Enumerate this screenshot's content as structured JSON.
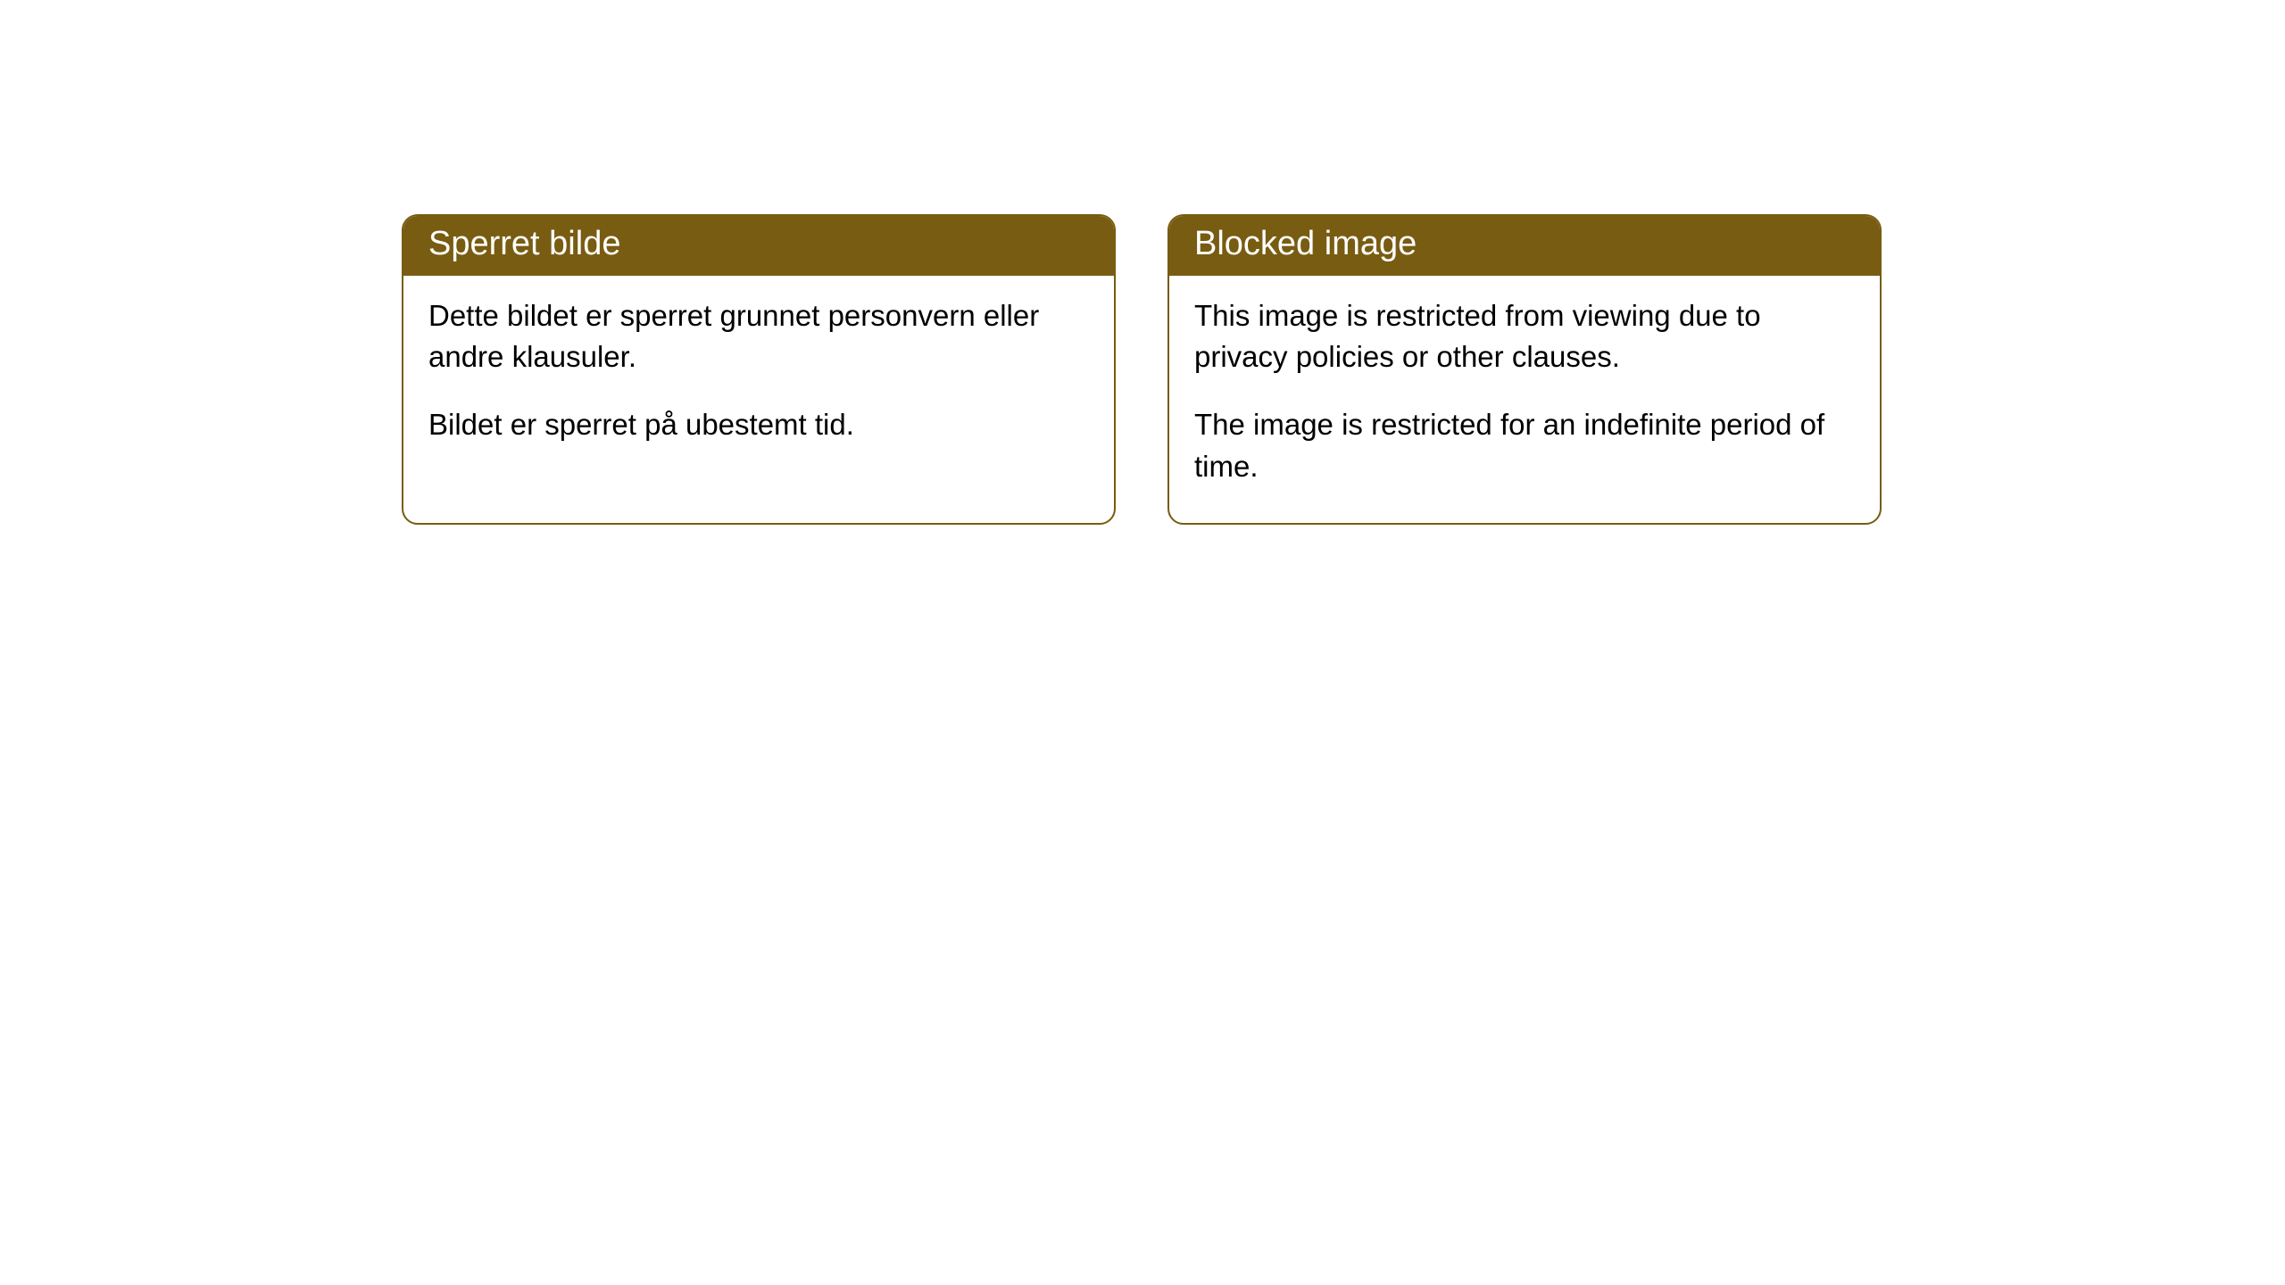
{
  "cards": [
    {
      "header": "Sperret bilde",
      "paragraph1": "Dette bildet er sperret grunnet personvern eller andre klausuler.",
      "paragraph2": "Bildet er sperret på ubestemt tid."
    },
    {
      "header": "Blocked image",
      "paragraph1": "This image is restricted from viewing due to privacy policies or other clauses.",
      "paragraph2": "The image is restricted for an indefinite period of time."
    }
  ],
  "styling": {
    "card_border_color": "#785c11",
    "header_background_color": "#785c11",
    "header_text_color": "#ffffff",
    "body_background_color": "#ffffff",
    "body_text_color": "#000000",
    "border_radius": 18,
    "header_fontsize": 38,
    "body_fontsize": 33
  }
}
